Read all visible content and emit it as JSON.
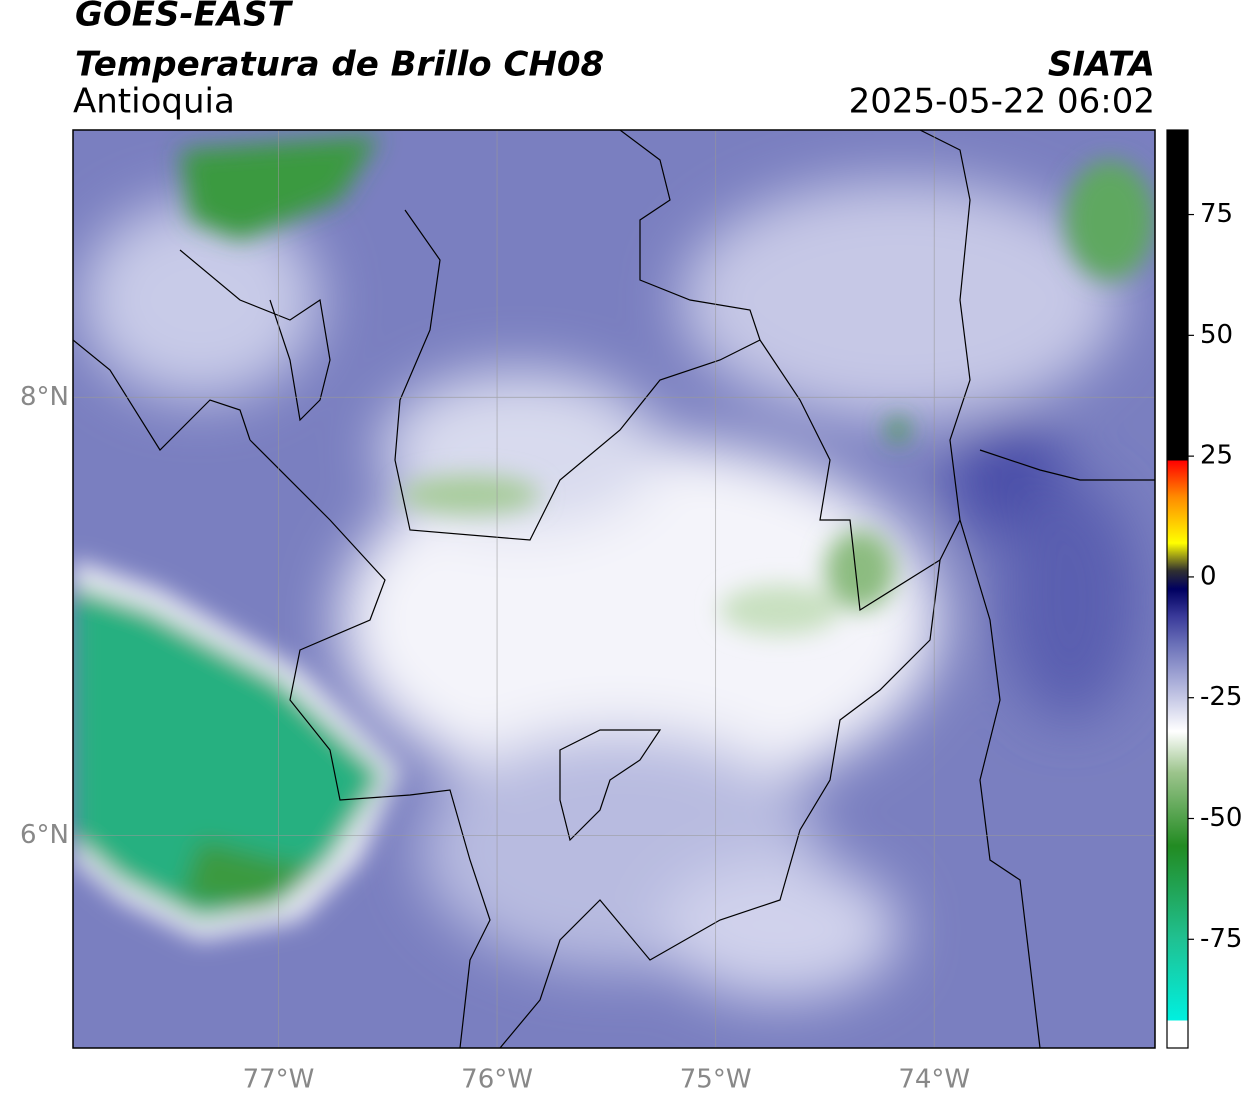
{
  "header": {
    "title": "GOES-EAST",
    "subtitle": "Temperatura de Brillo CH08",
    "region": "Antioquia",
    "source": "SIATA",
    "datetime": "2025-05-22 06:02"
  },
  "map": {
    "lon_extent": [
      -77.94,
      -72.99
    ],
    "lat_extent": [
      5.03,
      9.22
    ],
    "lon_ticks": [
      {
        "value": -77,
        "label": "77°W"
      },
      {
        "value": -76,
        "label": "76°W"
      },
      {
        "value": -75,
        "label": "75°W"
      },
      {
        "value": -74,
        "label": "74°W"
      }
    ],
    "lat_ticks": [
      {
        "value": 8,
        "label": "8°N"
      },
      {
        "value": 6,
        "label": "6°N"
      }
    ]
  },
  "colorbar": {
    "lim": [
      -97.5,
      92.5
    ],
    "ticks": [
      75,
      50,
      25,
      0,
      -25,
      -50,
      -75
    ]
  }
}
